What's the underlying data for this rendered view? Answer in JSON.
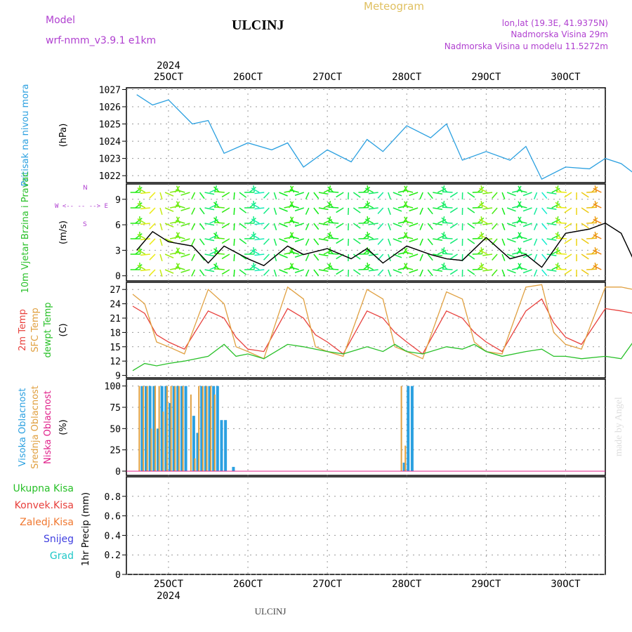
{
  "header": {
    "model_label": "Model",
    "model_name": "wrf-nmm_v3.9.1 e1km",
    "station": "ULCINJ",
    "chart_title": "Meteogram",
    "lonlat": "lon,lat (19.3E, 41.9375N)",
    "altitude": "Nadmorska Visina 29m",
    "model_altitude": "Nadmorska Visina u modelu 11.5272m",
    "footer_station": "ULCINJ",
    "credit": "made by Angel"
  },
  "colors": {
    "pressure": "#2ba0e0",
    "temp2m": "#e8403c",
    "sfc_temp": "#e0a040",
    "dewpoint": "#28c028",
    "cloud_high": "#2ba0e0",
    "cloud_mid": "#e0a040",
    "cloud_low": "#e0208a",
    "header_purple": "#b040d0",
    "title_gold": "#e0c060",
    "total_precip": "#28c028",
    "conv_precip": "#e8403c",
    "frozen_precip": "#f07830",
    "snow": "#4040e0",
    "hail": "#20c8c8"
  },
  "x_axis": {
    "year_label": "2024",
    "days": [
      "25OCT",
      "26OCT",
      "27OCT",
      "28OCT",
      "29OCT",
      "30OCT"
    ]
  },
  "chart_data": [
    {
      "type": "line",
      "panel": "pressure",
      "ylabel": "Pritisak na nivou mora",
      "unit": "(hPa)",
      "ylim": [
        1021.6,
        1027.1
      ],
      "yticks": [
        1022,
        1023,
        1024,
        1025,
        1026,
        1027
      ],
      "x_days": [
        24.6,
        24.8,
        25.0,
        25.3,
        25.5,
        25.7,
        26.0,
        26.3,
        26.5,
        26.7,
        27.0,
        27.3,
        27.5,
        27.7,
        28.0,
        28.3,
        28.5,
        28.7,
        29.0,
        29.3,
        29.5,
        29.7,
        30.0,
        30.3,
        30.5,
        30.7,
        30.9
      ],
      "series": [
        {
          "values": [
            1026.7,
            1026.1,
            1026.4,
            1025.0,
            1025.2,
            1023.3,
            1023.9,
            1023.5,
            1023.9,
            1022.5,
            1023.5,
            1022.8,
            1024.1,
            1023.4,
            1024.9,
            1024.2,
            1025.0,
            1022.9,
            1023.4,
            1022.9,
            1023.7,
            1021.8,
            1022.5,
            1022.4,
            1023.0,
            1022.7,
            1022.0
          ]
        }
      ]
    },
    {
      "type": "line",
      "panel": "wind",
      "ylabel": "10m Vjetar Brzina i Pravac",
      "unit": "(m/s)",
      "legend_glyph_lines": [
        "N",
        "^",
        "|",
        "W <-- -- --> E",
        "|",
        "v",
        "S"
      ],
      "ylim": [
        -0.6,
        10.8
      ],
      "yticks": [
        0,
        3,
        6,
        9
      ],
      "x_days": [
        24.6,
        24.8,
        25.0,
        25.3,
        25.5,
        25.7,
        26.0,
        26.2,
        26.5,
        26.7,
        27.0,
        27.3,
        27.5,
        27.7,
        28.0,
        28.3,
        28.5,
        28.7,
        29.0,
        29.3,
        29.5,
        29.7,
        30.0,
        30.3,
        30.5,
        30.7,
        30.9
      ],
      "series": [
        {
          "values": [
            3.0,
            5.2,
            4.0,
            3.5,
            1.5,
            3.5,
            2.0,
            1.2,
            3.5,
            2.5,
            3.2,
            2.0,
            3.2,
            1.5,
            3.5,
            2.5,
            2.0,
            1.8,
            4.5,
            2.0,
            2.5,
            1.0,
            5.0,
            5.5,
            6.2,
            5.0,
            1.0
          ]
        }
      ],
      "wind_barbs": "color-coded arrows by speed along the series"
    },
    {
      "type": "line",
      "panel": "temperature",
      "ylabels": [
        "2m Temp",
        "SFC Temp",
        "dewpt Temp"
      ],
      "unit": "(C)",
      "ylim": [
        8.5,
        28.5
      ],
      "yticks": [
        9,
        12,
        15,
        18,
        21,
        24,
        27
      ],
      "x_days": [
        24.55,
        24.7,
        24.85,
        25.0,
        25.2,
        25.5,
        25.7,
        25.85,
        26.0,
        26.2,
        26.5,
        26.7,
        26.85,
        27.0,
        27.2,
        27.5,
        27.7,
        27.85,
        28.0,
        28.2,
        28.5,
        28.7,
        28.85,
        29.0,
        29.2,
        29.5,
        29.7,
        29.85,
        30.0,
        30.2,
        30.5,
        30.7,
        30.85
      ],
      "series": [
        {
          "name": "2m Temp",
          "values": [
            23.5,
            22.0,
            17.5,
            16.0,
            14.5,
            22.5,
            21.0,
            17.0,
            14.5,
            14.0,
            23.0,
            21.0,
            17.5,
            16.0,
            13.5,
            22.5,
            21.0,
            18.0,
            16.0,
            13.5,
            22.5,
            21.0,
            18.0,
            16.0,
            14.0,
            22.5,
            25.0,
            20.0,
            17.0,
            15.5,
            23.0,
            22.5,
            22.0
          ]
        },
        {
          "name": "SFC Temp",
          "values": [
            26.0,
            24.0,
            16.0,
            15.0,
            13.5,
            27.0,
            24.0,
            15.0,
            14.0,
            12.5,
            27.5,
            25.0,
            15.0,
            14.0,
            13.0,
            27.0,
            25.0,
            15.0,
            14.0,
            12.5,
            26.5,
            25.0,
            16.0,
            14.0,
            13.5,
            27.5,
            28.0,
            18.0,
            15.5,
            14.5,
            27.5,
            27.5,
            27.0
          ]
        },
        {
          "name": "dewpt Temp",
          "values": [
            10.0,
            11.5,
            11.0,
            11.5,
            12.0,
            13.0,
            15.5,
            13.0,
            13.5,
            12.5,
            15.5,
            15.0,
            14.5,
            14.0,
            13.5,
            15.0,
            14.0,
            15.5,
            14.0,
            13.5,
            15.0,
            14.5,
            15.5,
            14.0,
            13.0,
            14.0,
            14.5,
            13.0,
            13.0,
            12.5,
            13.0,
            12.5,
            16.0
          ]
        }
      ]
    },
    {
      "type": "bar",
      "panel": "clouds",
      "ylabels": [
        "Visoka Oblacnost",
        "Srednja Oblacnost",
        "Niska Oblacnost"
      ],
      "unit": "(%)",
      "ylim": [
        -5,
        108
      ],
      "yticks": [
        0,
        25,
        50,
        75,
        100
      ],
      "x_days": [
        24.65,
        24.7,
        24.75,
        24.8,
        24.85,
        24.9,
        24.95,
        25.0,
        25.05,
        25.1,
        25.15,
        25.2,
        25.3,
        25.35,
        25.4,
        25.45,
        25.5,
        25.55,
        25.6,
        25.65,
        25.7,
        25.8,
        27.95,
        28.0,
        28.05
      ],
      "series": [
        {
          "name": "Visoka Oblacnost",
          "values": [
            100,
            100,
            100,
            100,
            50,
            100,
            100,
            80,
            100,
            100,
            100,
            100,
            65,
            45,
            100,
            100,
            100,
            100,
            100,
            60,
            60,
            5,
            10,
            100,
            100
          ]
        },
        {
          "name": "Srednja Oblacnost",
          "values": [
            100,
            100,
            100,
            50,
            100,
            100,
            70,
            100,
            100,
            100,
            100,
            100,
            90,
            15,
            100,
            100,
            100,
            100,
            90,
            0,
            0,
            0,
            100,
            30,
            0
          ]
        }
      ]
    },
    {
      "type": "bar",
      "panel": "precip",
      "ylabels": [
        "Ukupna Kisa",
        "Konvek.Kisa",
        "Zaledj.Kisa",
        "Snijeg",
        "Grad"
      ],
      "unit": "1hr Precip (mm)",
      "ylim": [
        0,
        1.0
      ],
      "yticks": [
        0,
        0.2,
        0.4,
        0.6,
        0.8
      ],
      "series": [
        {
          "values": []
        }
      ]
    }
  ]
}
